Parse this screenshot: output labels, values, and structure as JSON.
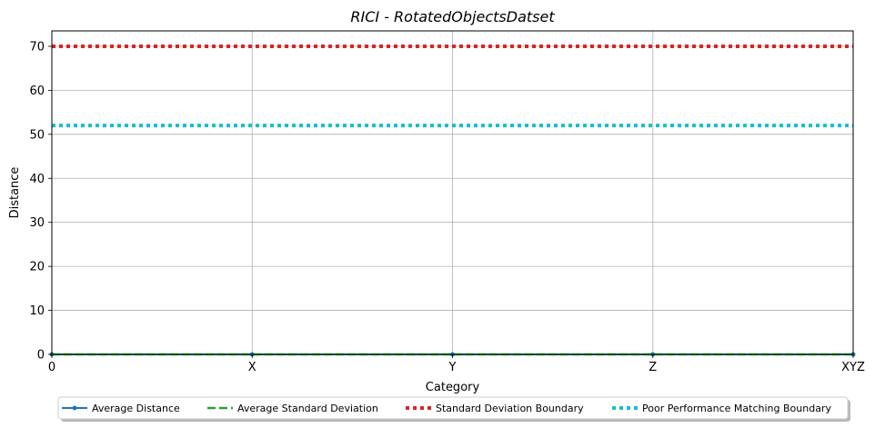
{
  "chart_data": {
    "type": "line",
    "title": "RICI - RotatedObjectsDatset",
    "xlabel": "Category",
    "ylabel": "Distance",
    "categories": [
      "0",
      "X",
      "Y",
      "Z",
      "XYZ"
    ],
    "ylim": [
      0,
      73.5
    ],
    "yticks": [
      0,
      10,
      20,
      30,
      40,
      50,
      60,
      70
    ],
    "grid": true,
    "legend_position": "bottom",
    "series": [
      {
        "name": "Average Distance",
        "values": [
          0,
          0,
          0,
          0,
          0
        ],
        "color": "#1f77b4",
        "style": "solid-marker"
      },
      {
        "name": "Average Standard Deviation",
        "values": [
          0,
          0,
          0,
          0,
          0
        ],
        "color": "#2ca02c",
        "style": "dashed"
      },
      {
        "name": "Standard Deviation Boundary",
        "values": [
          70,
          70,
          70,
          70,
          70
        ],
        "color": "#d62728",
        "style": "dotted"
      },
      {
        "name": "Poor Performance Matching Boundary",
        "values": [
          52,
          52,
          52,
          52,
          52
        ],
        "color": "#17becf",
        "style": "dotted"
      }
    ]
  }
}
